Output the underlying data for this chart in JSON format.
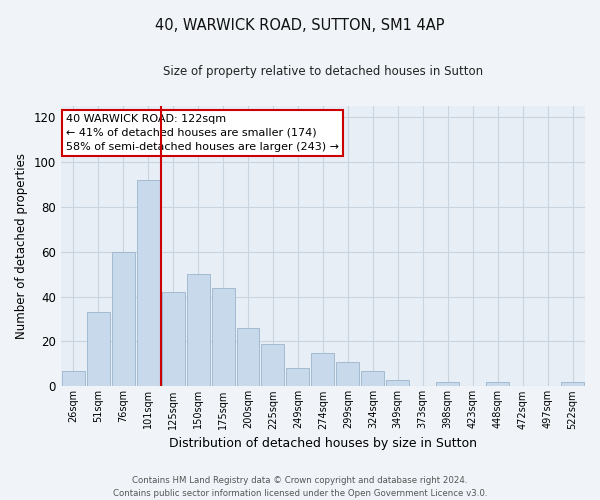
{
  "title": "40, WARWICK ROAD, SUTTON, SM1 4AP",
  "subtitle": "Size of property relative to detached houses in Sutton",
  "xlabel": "Distribution of detached houses by size in Sutton",
  "ylabel": "Number of detached properties",
  "bar_labels": [
    "26sqm",
    "51sqm",
    "76sqm",
    "101sqm",
    "125sqm",
    "150sqm",
    "175sqm",
    "200sqm",
    "225sqm",
    "249sqm",
    "274sqm",
    "299sqm",
    "324sqm",
    "349sqm",
    "373sqm",
    "398sqm",
    "423sqm",
    "448sqm",
    "472sqm",
    "497sqm",
    "522sqm"
  ],
  "bar_values": [
    7,
    33,
    60,
    92,
    42,
    50,
    44,
    26,
    19,
    8,
    15,
    11,
    7,
    3,
    0,
    2,
    0,
    2,
    0,
    0,
    2
  ],
  "bar_color": "#c8d9eb",
  "bar_edgecolor": "#9bb5cc",
  "vline_color": "#cc0000",
  "annotation_text": "40 WARWICK ROAD: 122sqm\n← 41% of detached houses are smaller (174)\n58% of semi-detached houses are larger (243) →",
  "annotation_box_edgecolor": "#cc0000",
  "ylim": [
    0,
    125
  ],
  "yticks": [
    0,
    20,
    40,
    60,
    80,
    100,
    120
  ],
  "footer_line1": "Contains HM Land Registry data © Crown copyright and database right 2024.",
  "footer_line2": "Contains public sector information licensed under the Open Government Licence v3.0.",
  "background_color": "#f0f4f8",
  "plot_bg_color": "#e8eef5",
  "grid_color": "#c8d4e0"
}
